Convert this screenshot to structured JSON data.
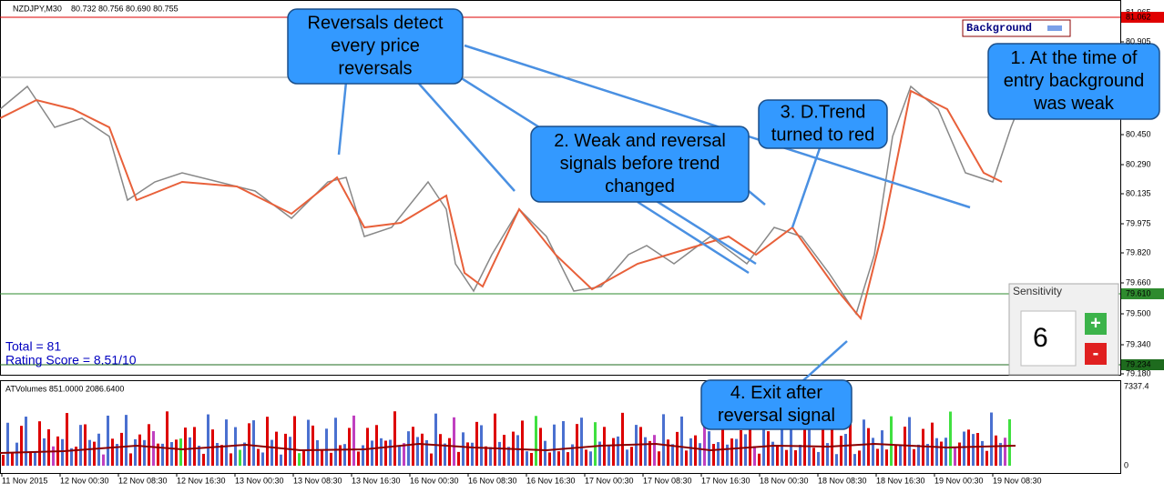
{
  "header": {
    "symbol": "NZDJPY,M30",
    "ohlc": "80.732 80.756 80.690 80.755"
  },
  "price_axis": {
    "labels": [
      "81.065",
      "80.905",
      "80.450",
      "80.290",
      "80.135",
      "79.975",
      "79.820",
      "79.660",
      "79.500",
      "79.340",
      "79.180"
    ],
    "markers": [
      {
        "text": "81.062",
        "color": "#e00000"
      },
      {
        "text": "79.610",
        "color": "#2e8b2e"
      },
      {
        "text": "79.234",
        "color": "#1e6b1e"
      }
    ]
  },
  "background_label": "Background",
  "stats": {
    "total": "Total = 81",
    "rating": "Rating Score = 8.51/10"
  },
  "indicator": {
    "label": "ATVolumes 851.0000 2086.6400",
    "axis": [
      "7337.4",
      "0"
    ]
  },
  "time_axis": {
    "labels": [
      "11 Nov 2015",
      "12 Nov 00:30",
      "12 Nov 08:30",
      "12 Nov 16:30",
      "13 Nov 00:30",
      "13 Nov 08:30",
      "13 Nov 16:30",
      "16 Nov 00:30",
      "16 Nov 08:30",
      "16 Nov 16:30",
      "17 Nov 00:30",
      "17 Nov 08:30",
      "17 Nov 16:30",
      "18 Nov 00:30",
      "18 Nov 08:30",
      "18 Nov 16:30",
      "19 Nov 00:30",
      "19 Nov 08:30"
    ]
  },
  "callouts": [
    {
      "lines": [
        "Reversals detect",
        "every price",
        "reversals"
      ]
    },
    {
      "lines": [
        "2. Weak and reversal",
        "signals before trend",
        "changed"
      ]
    },
    {
      "lines": [
        "3. D.Trend",
        "turned to red"
      ]
    },
    {
      "lines": [
        "1. At the time of",
        "entry background",
        "was weak"
      ]
    },
    {
      "lines": [
        "4. Exit after",
        "reversal signal"
      ]
    }
  ],
  "sensitivity": {
    "title": "Sensitivity",
    "value": "6",
    "plus": "+",
    "minus": "-"
  }
}
